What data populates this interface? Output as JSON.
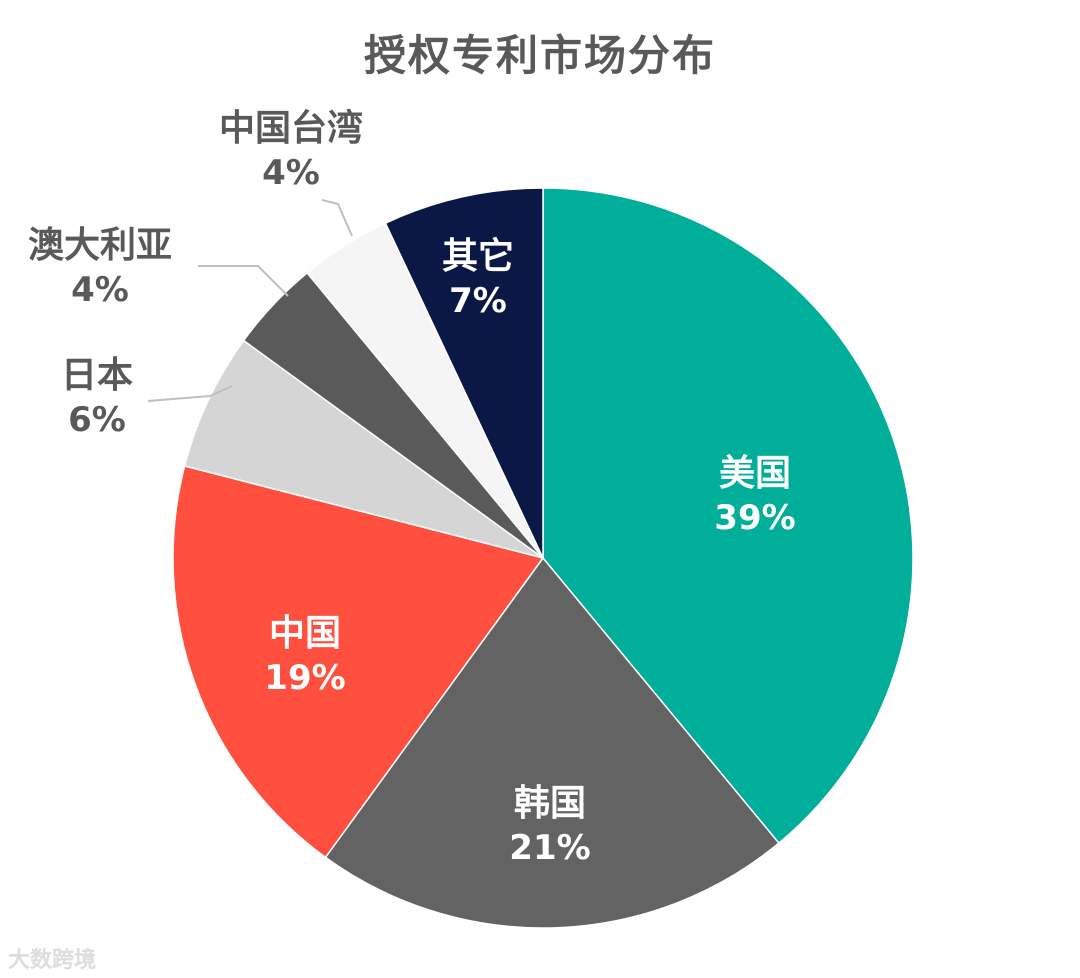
{
  "chart_data": {
    "type": "pie",
    "title": "授权专利市场分布",
    "start_angle_deg": 0,
    "direction": "clockwise",
    "slices": [
      {
        "label": "美国",
        "value": 39,
        "percent_text": "39%",
        "color": "#00AE9A",
        "label_color": "#ffffff",
        "label_position": "inside"
      },
      {
        "label": "韩国",
        "value": 21,
        "percent_text": "21%",
        "color": "#636363",
        "label_color": "#ffffff",
        "label_position": "inside"
      },
      {
        "label": "中国",
        "value": 19,
        "percent_text": "19%",
        "color": "#FF4F3F",
        "label_color": "#ffffff",
        "label_position": "inside"
      },
      {
        "label": "日本",
        "value": 6,
        "percent_text": "6%",
        "color": "#D5D5D5",
        "label_color": "#595959",
        "label_position": "outside"
      },
      {
        "label": "澳大利亚",
        "value": 4,
        "percent_text": "4%",
        "color": "#5A5A5A",
        "label_color": "#595959",
        "label_position": "outside"
      },
      {
        "label": "中国台湾",
        "value": 4,
        "percent_text": "4%",
        "color": "#F5F5F5",
        "label_color": "#595959",
        "label_position": "outside"
      },
      {
        "label": "其它",
        "value": 7,
        "percent_text": "7%",
        "color": "#0B1846",
        "label_color": "#ffffff",
        "label_position": "inside"
      }
    ]
  },
  "watermark": "大数跨境"
}
